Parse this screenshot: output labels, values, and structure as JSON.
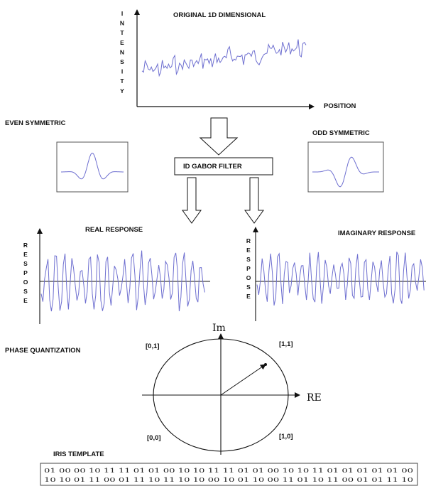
{
  "top_plot": {
    "title": "ORIGINAL 1D DIMENSIONAL",
    "y_axis_letters": [
      "I",
      "N",
      "T",
      "E",
      "N",
      "S",
      "I",
      "T",
      "Y"
    ],
    "x_axis_label": "POSITION"
  },
  "even": {
    "label": "EVEN SYMMETRIC"
  },
  "odd": {
    "label": "ODD SYMMETRIC"
  },
  "filter": {
    "label": "ID GABOR FILTER"
  },
  "real": {
    "title": "REAL RESPONSE",
    "y_axis_letters": [
      "R",
      "E",
      "S",
      "P",
      "O",
      "S",
      "E"
    ]
  },
  "imag": {
    "title": "IMAGINARY RESPONSE",
    "y_axis_letters": [
      "R",
      "E",
      "S",
      "P",
      "O",
      "S",
      "E"
    ]
  },
  "phase": {
    "label": "PHASE QUANTIZATION",
    "im_label": "Im",
    "re_label": "RE",
    "q01": "[0,1]",
    "q11": "[1,1]",
    "q00": "[0,0]",
    "q10": "[1,0]"
  },
  "template": {
    "label": "IRIS TEMPLATE",
    "row1": "01 00 00 10 11 11 01 01 00 10 10 11 11 01 01 00 10 10 11 01 01 01 01 01 00",
    "row2": "10 10 01 11 00 01 11 10 11 10 10 00 10 01 10 00 11 01 10 11 00 01 01 11 10"
  },
  "colors": {
    "signal": "#6e6fd0",
    "ink": "#111111"
  }
}
